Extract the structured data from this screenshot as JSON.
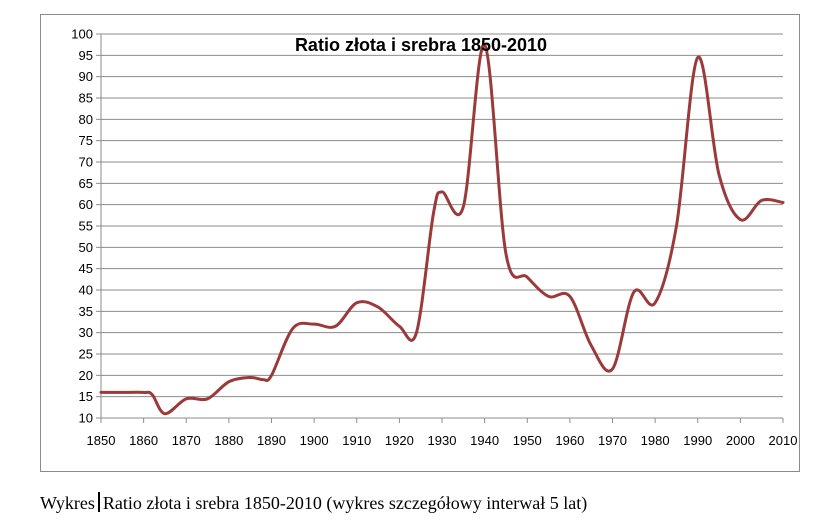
{
  "chart_data": {
    "type": "line",
    "title": "Ratio złota i srebra 1850-2010",
    "xlabel": "",
    "ylabel": "",
    "xlim": [
      1850,
      2010
    ],
    "ylim": [
      10,
      100
    ],
    "x_ticks": [
      1850,
      1860,
      1870,
      1880,
      1890,
      1900,
      1910,
      1920,
      1930,
      1940,
      1950,
      1960,
      1970,
      1980,
      1990,
      2000,
      2010
    ],
    "y_ticks": [
      10,
      15,
      20,
      25,
      30,
      35,
      40,
      45,
      50,
      55,
      60,
      65,
      70,
      75,
      80,
      85,
      90,
      95,
      100
    ],
    "grid": "horizontal",
    "legend": "none",
    "line_color": "#9b3a3a",
    "series": [
      {
        "x": [
          1850,
          1855,
          1860,
          1862,
          1865,
          1870,
          1875,
          1880,
          1885,
          1888,
          1890,
          1895,
          1900,
          1905,
          1910,
          1915,
          1920,
          1924,
          1928,
          1930,
          1935,
          1940,
          1945,
          1950,
          1955,
          1960,
          1965,
          1970,
          1975,
          1980,
          1985,
          1990,
          1995,
          2000,
          2005,
          2010
        ],
        "values": [
          16,
          16,
          16,
          15.5,
          11,
          14.5,
          14.5,
          18.5,
          19.5,
          19,
          20,
          31,
          32,
          31.5,
          37,
          36,
          31.5,
          30,
          58,
          63,
          59.5,
          97.5,
          48.5,
          43,
          38.5,
          38.5,
          27,
          21.5,
          39.5,
          37,
          55,
          94.5,
          67,
          56.5,
          61,
          60.5
        ]
      }
    ]
  },
  "caption": {
    "prefix": "Wykres",
    "text": "Ratio złota i srebra 1850-2010 (wykres szczegółowy interwał 5 lat)"
  }
}
